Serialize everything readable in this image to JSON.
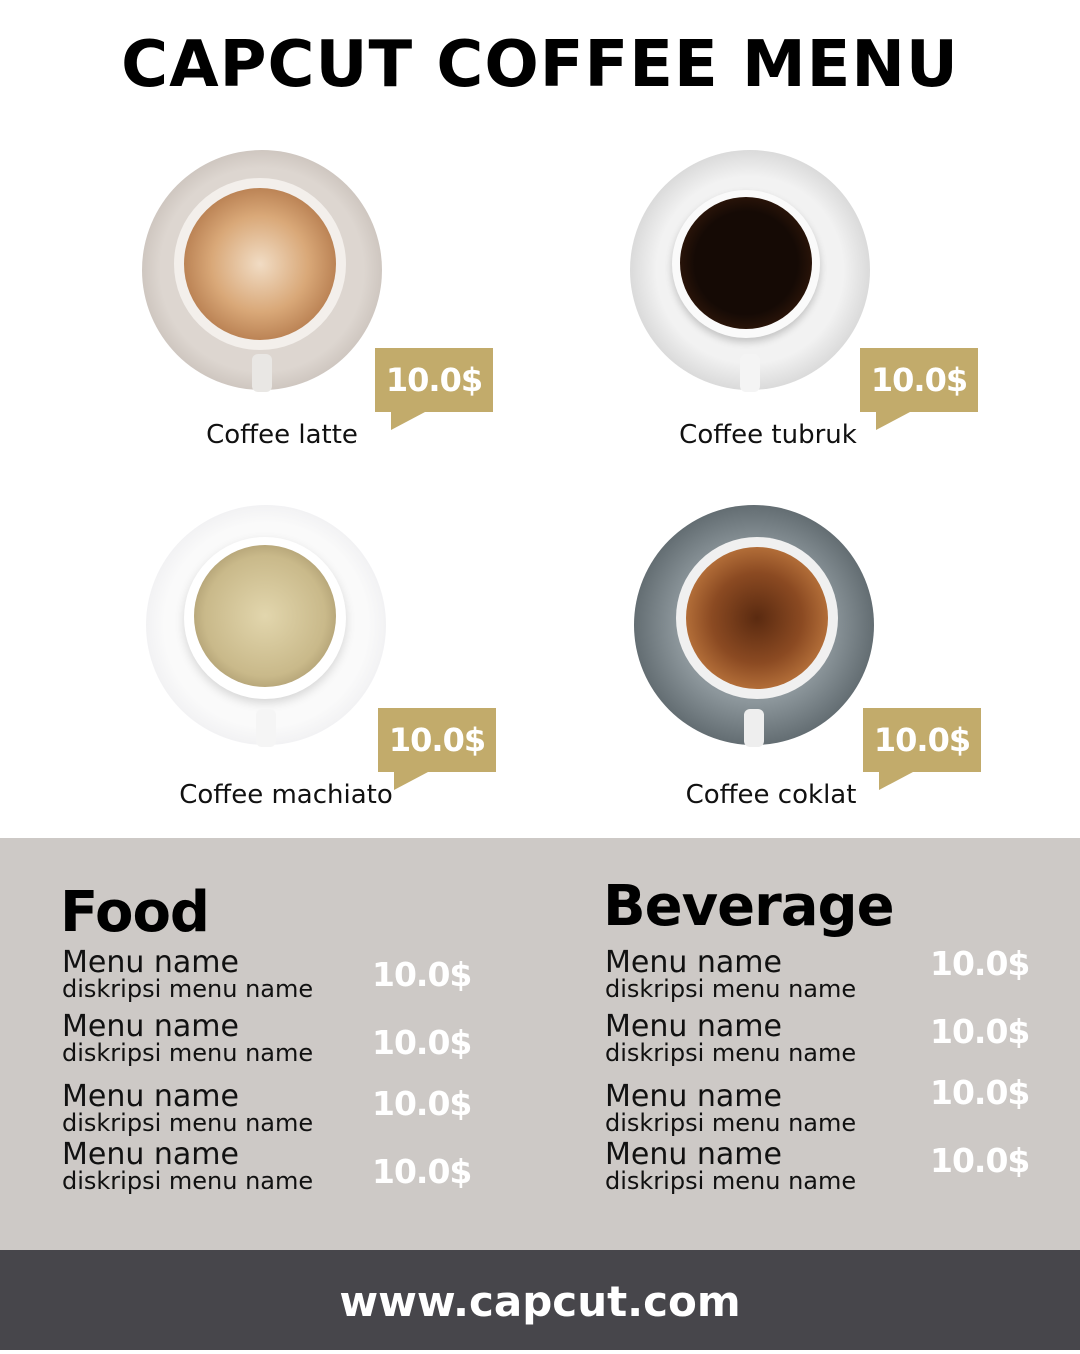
{
  "title": "CAPCUT COFFEE MENU",
  "colors": {
    "accent": "#c2ab6b",
    "band": "#cdc9c6",
    "footer": "#47464b"
  },
  "coffees": [
    {
      "name": "Coffee latte",
      "price": "10.0$"
    },
    {
      "name": "Coffee tubruk",
      "price": "10.0$"
    },
    {
      "name": "Coffee machiato",
      "price": "10.0$"
    },
    {
      "name": "Coffee coklat",
      "price": "10.0$"
    }
  ],
  "food": {
    "title": "Food",
    "items": [
      {
        "name": "Menu name",
        "desc": "diskripsi menu name",
        "price": "10.0$"
      },
      {
        "name": "Menu name",
        "desc": "diskripsi menu name",
        "price": "10.0$"
      },
      {
        "name": "Menu name",
        "desc": "diskripsi menu name",
        "price": "10.0$"
      },
      {
        "name": "Menu name",
        "desc": "diskripsi menu name",
        "price": "10.0$"
      }
    ]
  },
  "beverage": {
    "title": "Beverage",
    "items": [
      {
        "name": "Menu name",
        "desc": "diskripsi menu name",
        "price": "10.0$"
      },
      {
        "name": "Menu name",
        "desc": "diskripsi menu name",
        "price": "10.0$"
      },
      {
        "name": "Menu name",
        "desc": "diskripsi menu name",
        "price": "10.0$"
      },
      {
        "name": "Menu name",
        "desc": "diskripsi menu name",
        "price": "10.0$"
      }
    ]
  },
  "footer": {
    "url": "www.capcut.com"
  }
}
